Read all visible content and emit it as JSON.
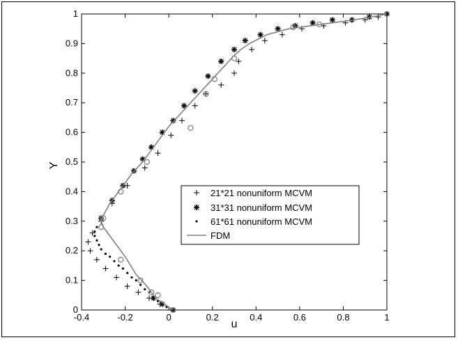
{
  "chart_data": {
    "type": "scatter",
    "xlabel": "u",
    "ylabel": "Y",
    "xlim": [
      -0.4,
      1
    ],
    "ylim": [
      0,
      1
    ],
    "xticks": [
      "-0.4",
      "-0.2",
      "0",
      "0.2",
      "0.4",
      "0.6",
      "0.8",
      "1"
    ],
    "yticks": [
      "0",
      "0.1",
      "0.2",
      "0.3",
      "0.4",
      "0.5",
      "0.6",
      "0.7",
      "0.8",
      "0.9",
      "1"
    ],
    "grid": false,
    "legend_position": "center-right",
    "series": [
      {
        "name": "21*21 nonuniform MCVM",
        "marker": "plus",
        "color": "#000000",
        "x": [
          0.02,
          -0.04,
          -0.09,
          -0.14,
          -0.19,
          -0.24,
          -0.29,
          -0.33,
          -0.36,
          -0.37,
          -0.35,
          -0.31,
          -0.26,
          -0.19,
          -0.11,
          -0.05,
          0.01,
          0.06,
          0.12,
          0.17,
          0.24,
          0.3,
          0.32,
          0.38,
          0.44,
          0.52,
          0.61,
          0.71,
          0.81,
          0.9,
          0.96,
          1.0
        ],
        "y": [
          0.0,
          0.02,
          0.04,
          0.06,
          0.08,
          0.11,
          0.14,
          0.17,
          0.2,
          0.23,
          0.26,
          0.3,
          0.36,
          0.42,
          0.48,
          0.53,
          0.59,
          0.64,
          0.69,
          0.73,
          0.76,
          0.8,
          0.84,
          0.88,
          0.91,
          0.93,
          0.95,
          0.96,
          0.97,
          0.98,
          0.99,
          1.0
        ]
      },
      {
        "name": "31*31 nonuniform MCVM",
        "marker": "star",
        "color": "#000000",
        "x": [
          0.02,
          -0.03,
          -0.07,
          -0.31,
          -0.26,
          -0.21,
          -0.16,
          -0.12,
          -0.08,
          -0.03,
          0.02,
          0.07,
          0.12,
          0.18,
          0.24,
          0.3,
          0.35,
          0.42,
          0.5,
          0.58,
          0.66,
          0.75,
          0.84,
          0.92,
          1.0
        ],
        "y": [
          0.0,
          0.02,
          0.04,
          0.31,
          0.37,
          0.42,
          0.47,
          0.51,
          0.55,
          0.6,
          0.64,
          0.69,
          0.74,
          0.79,
          0.84,
          0.88,
          0.91,
          0.93,
          0.95,
          0.96,
          0.97,
          0.98,
          0.98,
          0.99,
          1.0
        ]
      },
      {
        "name": "61*61 nonuniform MCVM",
        "marker": "dot",
        "color": "#000000",
        "x": [
          0.01,
          -0.01,
          -0.03,
          -0.05,
          -0.07,
          -0.09,
          -0.11,
          -0.13,
          -0.15,
          -0.17,
          -0.19,
          -0.21,
          -0.23,
          -0.25,
          -0.27,
          -0.29,
          -0.31,
          -0.32,
          -0.33,
          -0.34,
          -0.34,
          -0.33
        ],
        "y": [
          0.0,
          0.01,
          0.02,
          0.03,
          0.045,
          0.06,
          0.07,
          0.085,
          0.1,
          0.11,
          0.125,
          0.14,
          0.15,
          0.165,
          0.18,
          0.19,
          0.205,
          0.22,
          0.235,
          0.25,
          0.265,
          0.28
        ]
      },
      {
        "name": "FDM",
        "marker": "line",
        "color": "#808080",
        "x": [
          0.02,
          -0.02,
          -0.06,
          -0.1,
          -0.15,
          -0.2,
          -0.25,
          -0.3,
          -0.31,
          -0.3,
          -0.27,
          -0.22,
          -0.17,
          -0.12,
          -0.08,
          -0.04,
          0.0,
          0.05,
          0.1,
          0.15,
          0.2,
          0.25,
          0.3,
          0.33,
          0.37,
          0.45,
          0.55,
          0.65,
          0.75,
          0.85,
          0.93,
          1.0
        ],
        "y": [
          0.0,
          0.02,
          0.04,
          0.08,
          0.12,
          0.18,
          0.23,
          0.28,
          0.3,
          0.32,
          0.36,
          0.41,
          0.46,
          0.5,
          0.54,
          0.58,
          0.62,
          0.66,
          0.7,
          0.74,
          0.78,
          0.82,
          0.86,
          0.88,
          0.9,
          0.93,
          0.95,
          0.96,
          0.97,
          0.98,
          0.99,
          1.0
        ],
        "marker_x": [
          0.02,
          -0.05,
          -0.08,
          -0.13,
          -0.22,
          -0.31,
          -0.3,
          -0.22,
          -0.1,
          0.1,
          0.17,
          0.21,
          0.3,
          0.57,
          0.69,
          1.0
        ],
        "marker_y": [
          0.0,
          0.05,
          0.06,
          0.1,
          0.17,
          0.28,
          0.31,
          0.4,
          0.5,
          0.615,
          0.73,
          0.78,
          0.85,
          0.955,
          0.965,
          1.0
        ]
      }
    ]
  }
}
